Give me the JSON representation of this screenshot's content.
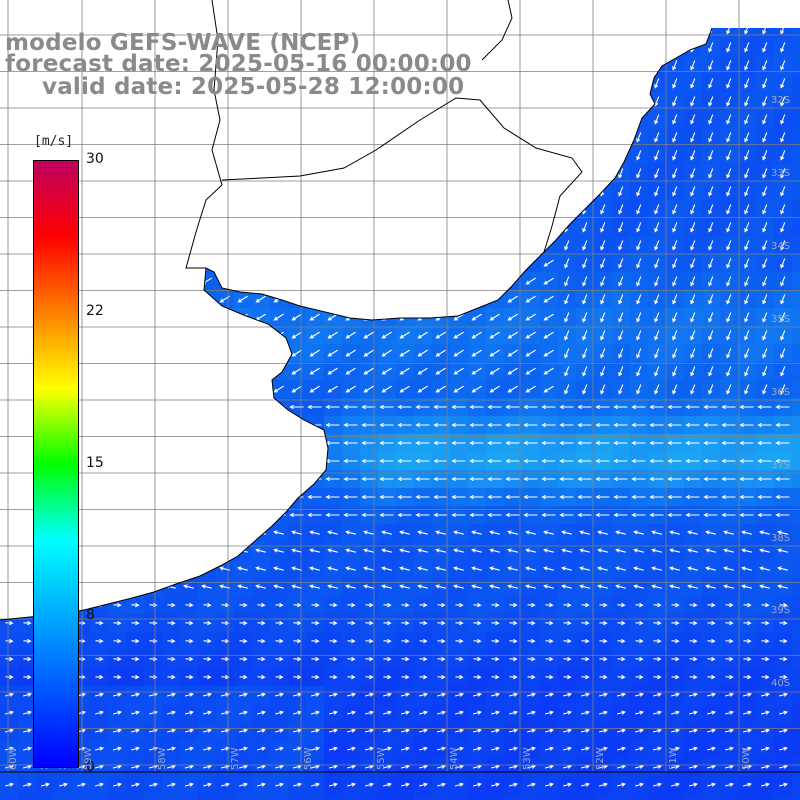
{
  "title": {
    "line1": "modelo GEFS-WAVE (NCEP)",
    "line2": "forecast date: 2025-05-16 00:00:00",
    "line3": "valid date: 2025-05-28 12:00:00"
  },
  "colorbar": {
    "unit": "[m/s]",
    "min": 0,
    "max": 30,
    "ticks": [
      "30",
      "22",
      "15",
      "8",
      "0"
    ],
    "colors": [
      "#0000ff",
      "#0055ff",
      "#00aaff",
      "#00ffff",
      "#00ff00",
      "#ffff00",
      "#ff7f00",
      "#ff0000",
      "#c00060"
    ]
  },
  "map": {
    "lat_labels": [
      "32S",
      "33S",
      "34S",
      "35S",
      "36S",
      "37S",
      "38S",
      "39S",
      "40S"
    ],
    "lon_labels": [
      "60W",
      "59W",
      "58W",
      "57W",
      "56W",
      "55W",
      "54W",
      "53W",
      "52W",
      "51W",
      "50W"
    ],
    "colors": {
      "land": "#ffffff",
      "coast": "#000000",
      "grid": "#7f7f7f",
      "ocean_low": "#0a2cf5",
      "ocean_mid": "#0c64f0",
      "ocean_high": "#1aa6f2",
      "arrow": "#ffffff"
    }
  }
}
